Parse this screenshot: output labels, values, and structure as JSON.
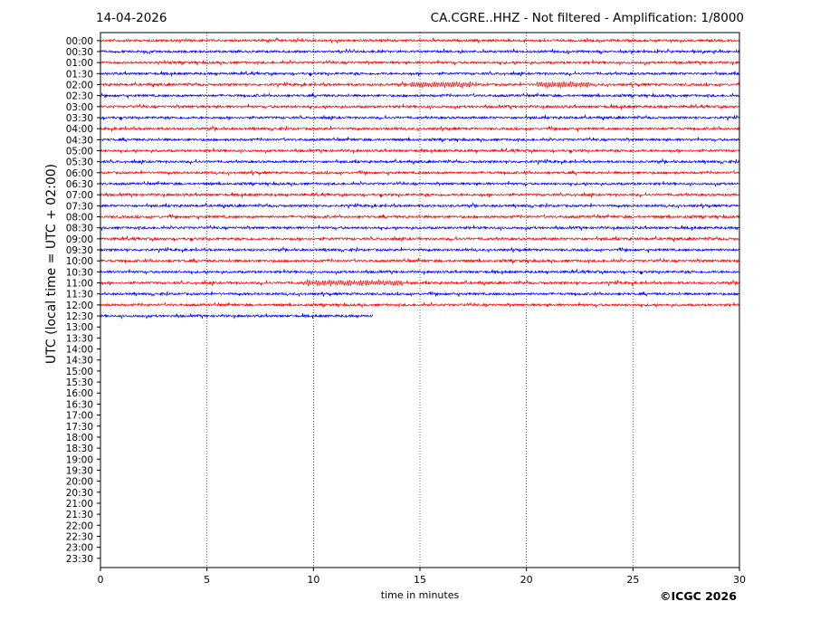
{
  "header": {
    "date": "14-04-2026",
    "title": "CA.CGRE..HHZ - Not filtered - Amplification: 1/8000"
  },
  "credit": "©ICGC 2026",
  "chart_data": {
    "type": "line",
    "title": "CA.CGRE..HHZ - Not filtered - Amplification: 1/8000",
    "xlabel": "time in minutes",
    "ylabel": "UTC (local time = UTC + 02:00)",
    "xlim": [
      0,
      30
    ],
    "xticks": [
      0,
      5,
      10,
      15,
      20,
      25,
      30
    ],
    "rows": [
      "00:00",
      "00:30",
      "01:00",
      "01:30",
      "02:00",
      "02:30",
      "03:00",
      "03:30",
      "04:00",
      "04:30",
      "05:00",
      "05:30",
      "06:00",
      "06:30",
      "07:00",
      "07:30",
      "08:00",
      "08:30",
      "09:00",
      "09:30",
      "10:00",
      "10:30",
      "11:00",
      "11:30",
      "12:00",
      "12:30",
      "13:00",
      "13:30",
      "14:00",
      "14:30",
      "15:00",
      "15:30",
      "16:00",
      "16:30",
      "17:00",
      "17:30",
      "18:00",
      "18:30",
      "19:00",
      "19:30",
      "20:00",
      "20:30",
      "21:00",
      "21:30",
      "22:00",
      "22:30",
      "23:00",
      "23:30"
    ],
    "trace_colors": [
      "#ff0000",
      "#0000ff"
    ],
    "traces_recorded_rows": 26,
    "last_row_end_minute": 12.8,
    "vertical_gridlines": "dotted",
    "note_bursts": [
      {
        "row": "02:00",
        "from": 14.5,
        "to": 17.5
      },
      {
        "row": "02:00",
        "from": 20.5,
        "to": 23.0
      },
      {
        "row": "11:00",
        "from": 9.5,
        "to": 14.2
      }
    ]
  }
}
